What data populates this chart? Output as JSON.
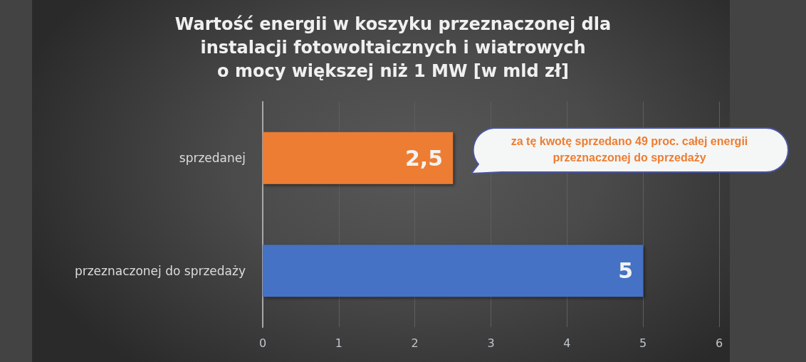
{
  "chart_data": {
    "type": "bar",
    "orientation": "horizontal",
    "title": "Wartość energii w koszyku przeznaczonej dla\ninstalacji fotowoltaicznych i wiatrowych\no mocy większej niż 1 MW [w mld zł]",
    "categories": [
      "sprzedanej",
      "przeznaczonej do sprzedaży"
    ],
    "values": [
      2.5,
      5
    ],
    "colors": [
      "#ed7d31",
      "#4472c4"
    ],
    "value_labels": [
      "2,5",
      "5"
    ],
    "xlim": [
      0,
      6
    ],
    "xticks": [
      0,
      1,
      2,
      3,
      4,
      5,
      6
    ],
    "grid": "x",
    "annotations": [
      "za tę kwotę sprzedano 49 proc. całej energii przeznaczonej do sprzedaży"
    ]
  }
}
